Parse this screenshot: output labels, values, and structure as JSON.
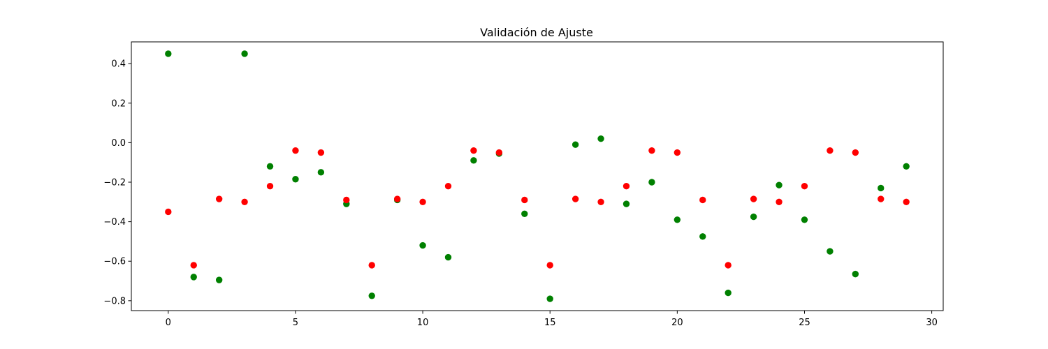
{
  "chart_data": {
    "type": "scatter",
    "title": "Validación de Ajuste",
    "xlabel": "",
    "ylabel": "",
    "xlim": [
      -1.45,
      30.45
    ],
    "ylim": [
      -0.85,
      0.51
    ],
    "xticks": [
      0,
      5,
      10,
      15,
      20,
      25,
      30
    ],
    "yticks": [
      -0.8,
      -0.6,
      -0.4,
      -0.2,
      0.0,
      0.2,
      0.4
    ],
    "ytick_labels": [
      "−0.8",
      "−0.6",
      "−0.4",
      "−0.2",
      "0.0",
      "0.2",
      "0.4"
    ],
    "grid": false,
    "series": [
      {
        "color": "#008000",
        "x": [
          0,
          1,
          2,
          3,
          4,
          5,
          6,
          7,
          8,
          9,
          10,
          11,
          12,
          13,
          14,
          15,
          16,
          17,
          18,
          19,
          20,
          21,
          22,
          23,
          24,
          25,
          26,
          27,
          28,
          29
        ],
        "y": [
          0.45,
          -0.68,
          -0.695,
          0.45,
          -0.12,
          -0.185,
          -0.15,
          -0.31,
          -0.775,
          -0.29,
          -0.52,
          -0.58,
          -0.09,
          -0.055,
          -0.36,
          -0.79,
          -0.01,
          0.02,
          -0.31,
          -0.2,
          -0.39,
          -0.475,
          -0.76,
          -0.375,
          -0.215,
          -0.39,
          -0.55,
          -0.665,
          -0.23,
          -0.12
        ]
      },
      {
        "color": "#ff0000",
        "x": [
          0,
          1,
          2,
          3,
          4,
          5,
          6,
          7,
          8,
          9,
          10,
          11,
          12,
          13,
          14,
          15,
          16,
          17,
          18,
          19,
          20,
          21,
          22,
          23,
          24,
          25,
          26,
          27,
          28,
          29
        ],
        "y": [
          -0.35,
          -0.62,
          -0.285,
          -0.3,
          -0.22,
          -0.04,
          -0.05,
          -0.29,
          -0.62,
          -0.285,
          -0.3,
          -0.22,
          -0.04,
          -0.05,
          -0.29,
          -0.62,
          -0.285,
          -0.3,
          -0.22,
          -0.04,
          -0.05,
          -0.29,
          -0.62,
          -0.285,
          -0.3,
          -0.22,
          -0.04,
          -0.05,
          -0.285,
          -0.3
        ]
      }
    ]
  }
}
